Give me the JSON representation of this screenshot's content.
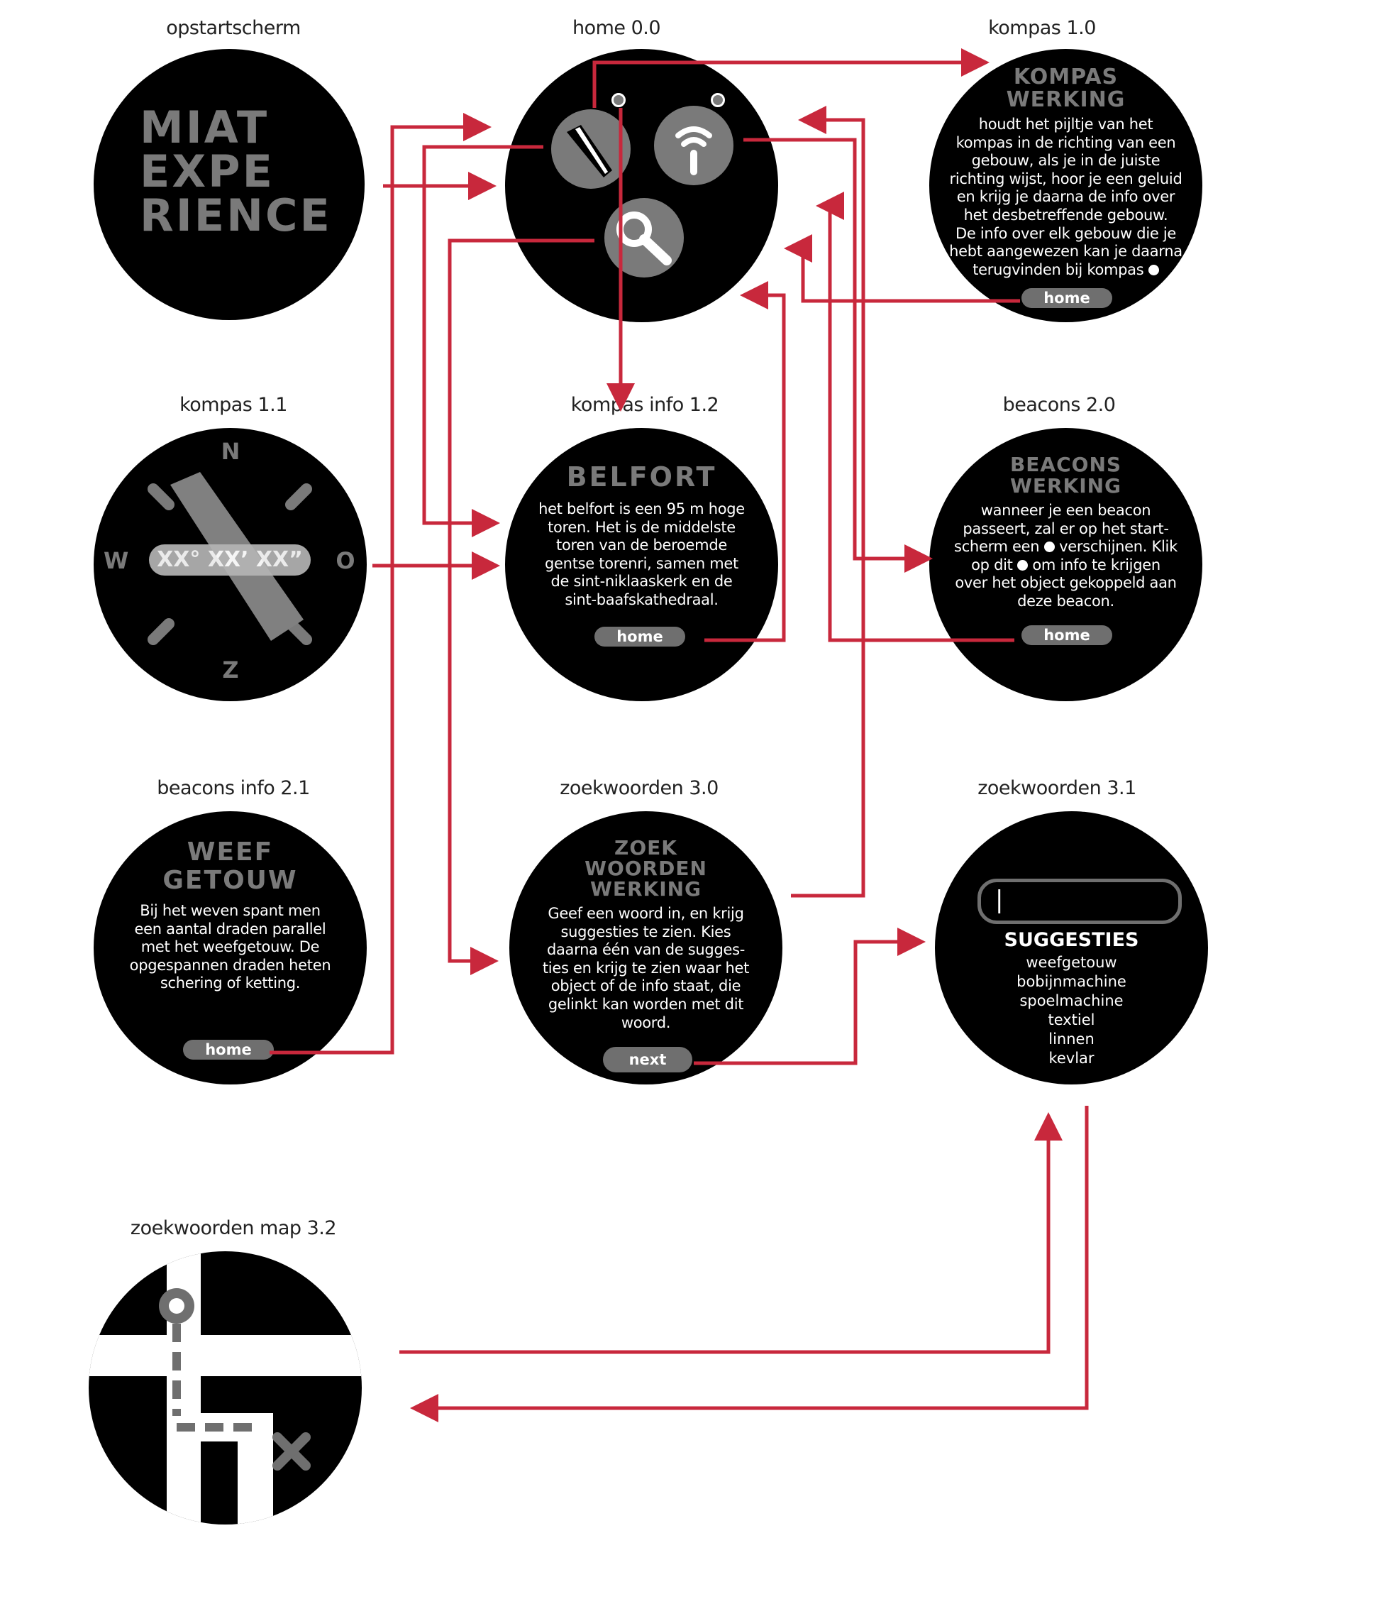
{
  "labels": {
    "startup": "opstartscherm",
    "home": "home 0.0",
    "kompas10": "kompas 1.0",
    "kompas11": "kompas 1.1",
    "kompas12": "kompas info 1.2",
    "beacons20": "beacons 2.0",
    "beacons21": "beacons info 2.1",
    "zoek30": "zoekwoorden 3.0",
    "zoek31": "zoekwoorden 3.1",
    "zoek32": "zoekwoorden map 3.2"
  },
  "startup": {
    "line1": "MIAT",
    "line2": "EXPE",
    "line3": "RIENCE"
  },
  "home": {
    "icons": [
      "compass-icon",
      "beacon-icon",
      "search-icon"
    ]
  },
  "kompas10": {
    "title1": "KOMPAS",
    "title2": "WERKING",
    "body": [
      "houdt het pijltje van het",
      "kompas in de richting van een",
      "gebouw, als je in de juiste",
      "richting wijst, hoor je een geluid",
      "en krijg je daarna de info over",
      "het desbetreffende gebouw.",
      "De info over elk gebouw die je",
      "hebt aangewezen kan je daarna",
      "terugvinden bij kompas"
    ],
    "button": "home"
  },
  "kompas11": {
    "n": "N",
    "e": "O",
    "s": "Z",
    "w": "W",
    "coords": "XX° XX’ XX”"
  },
  "kompas12": {
    "title": "BELFORT",
    "body": [
      "het belfort is een 95 m hoge",
      "toren. Het is de middelste",
      "toren van de beroemde",
      "gentse torenri, samen met",
      "de sint-niklaaskerk en de",
      "sint-baafskathedraal."
    ],
    "button": "home"
  },
  "beacons20": {
    "title1": "BEACONS",
    "title2": "WERKING",
    "body": [
      "wanneer je een beacon",
      "passeert, zal er op het start-",
      "scherm een",
      "verschijnen. Klik",
      "op dit",
      "om info te krijgen",
      "over het object gekoppeld aan",
      "deze beacon."
    ],
    "button": "home"
  },
  "beacons21": {
    "title1": "WEEF",
    "title2": "GETOUW",
    "body": [
      "Bij het weven spant men",
      "een aantal draden parallel",
      "met het weefgetouw. De",
      "opgespannen draden heten",
      "schering of ketting."
    ],
    "button": "home"
  },
  "zoek30": {
    "title1": "ZOEK",
    "title2": "WOORDEN",
    "title3": "WERKING",
    "body": [
      "Geef een woord in, en krijg",
      "suggesties te zien. Kies",
      "daarna één van de sugges-",
      "ties en krijg te zien waar het",
      "object of de info staat, die",
      "gelinkt kan worden met dit",
      "woord."
    ],
    "button": "next"
  },
  "zoek31": {
    "input_value": "|",
    "heading": "SUGGESTIES",
    "suggestions": [
      "weefgetouw",
      "bobijnmachine",
      "spoelmachine",
      "textiel",
      "linnen",
      "kevlar"
    ]
  },
  "colors": {
    "arrow": "#c8283c",
    "screen": "#000000",
    "grey": "#7a7a7a",
    "pill": "#6f6f6f"
  }
}
